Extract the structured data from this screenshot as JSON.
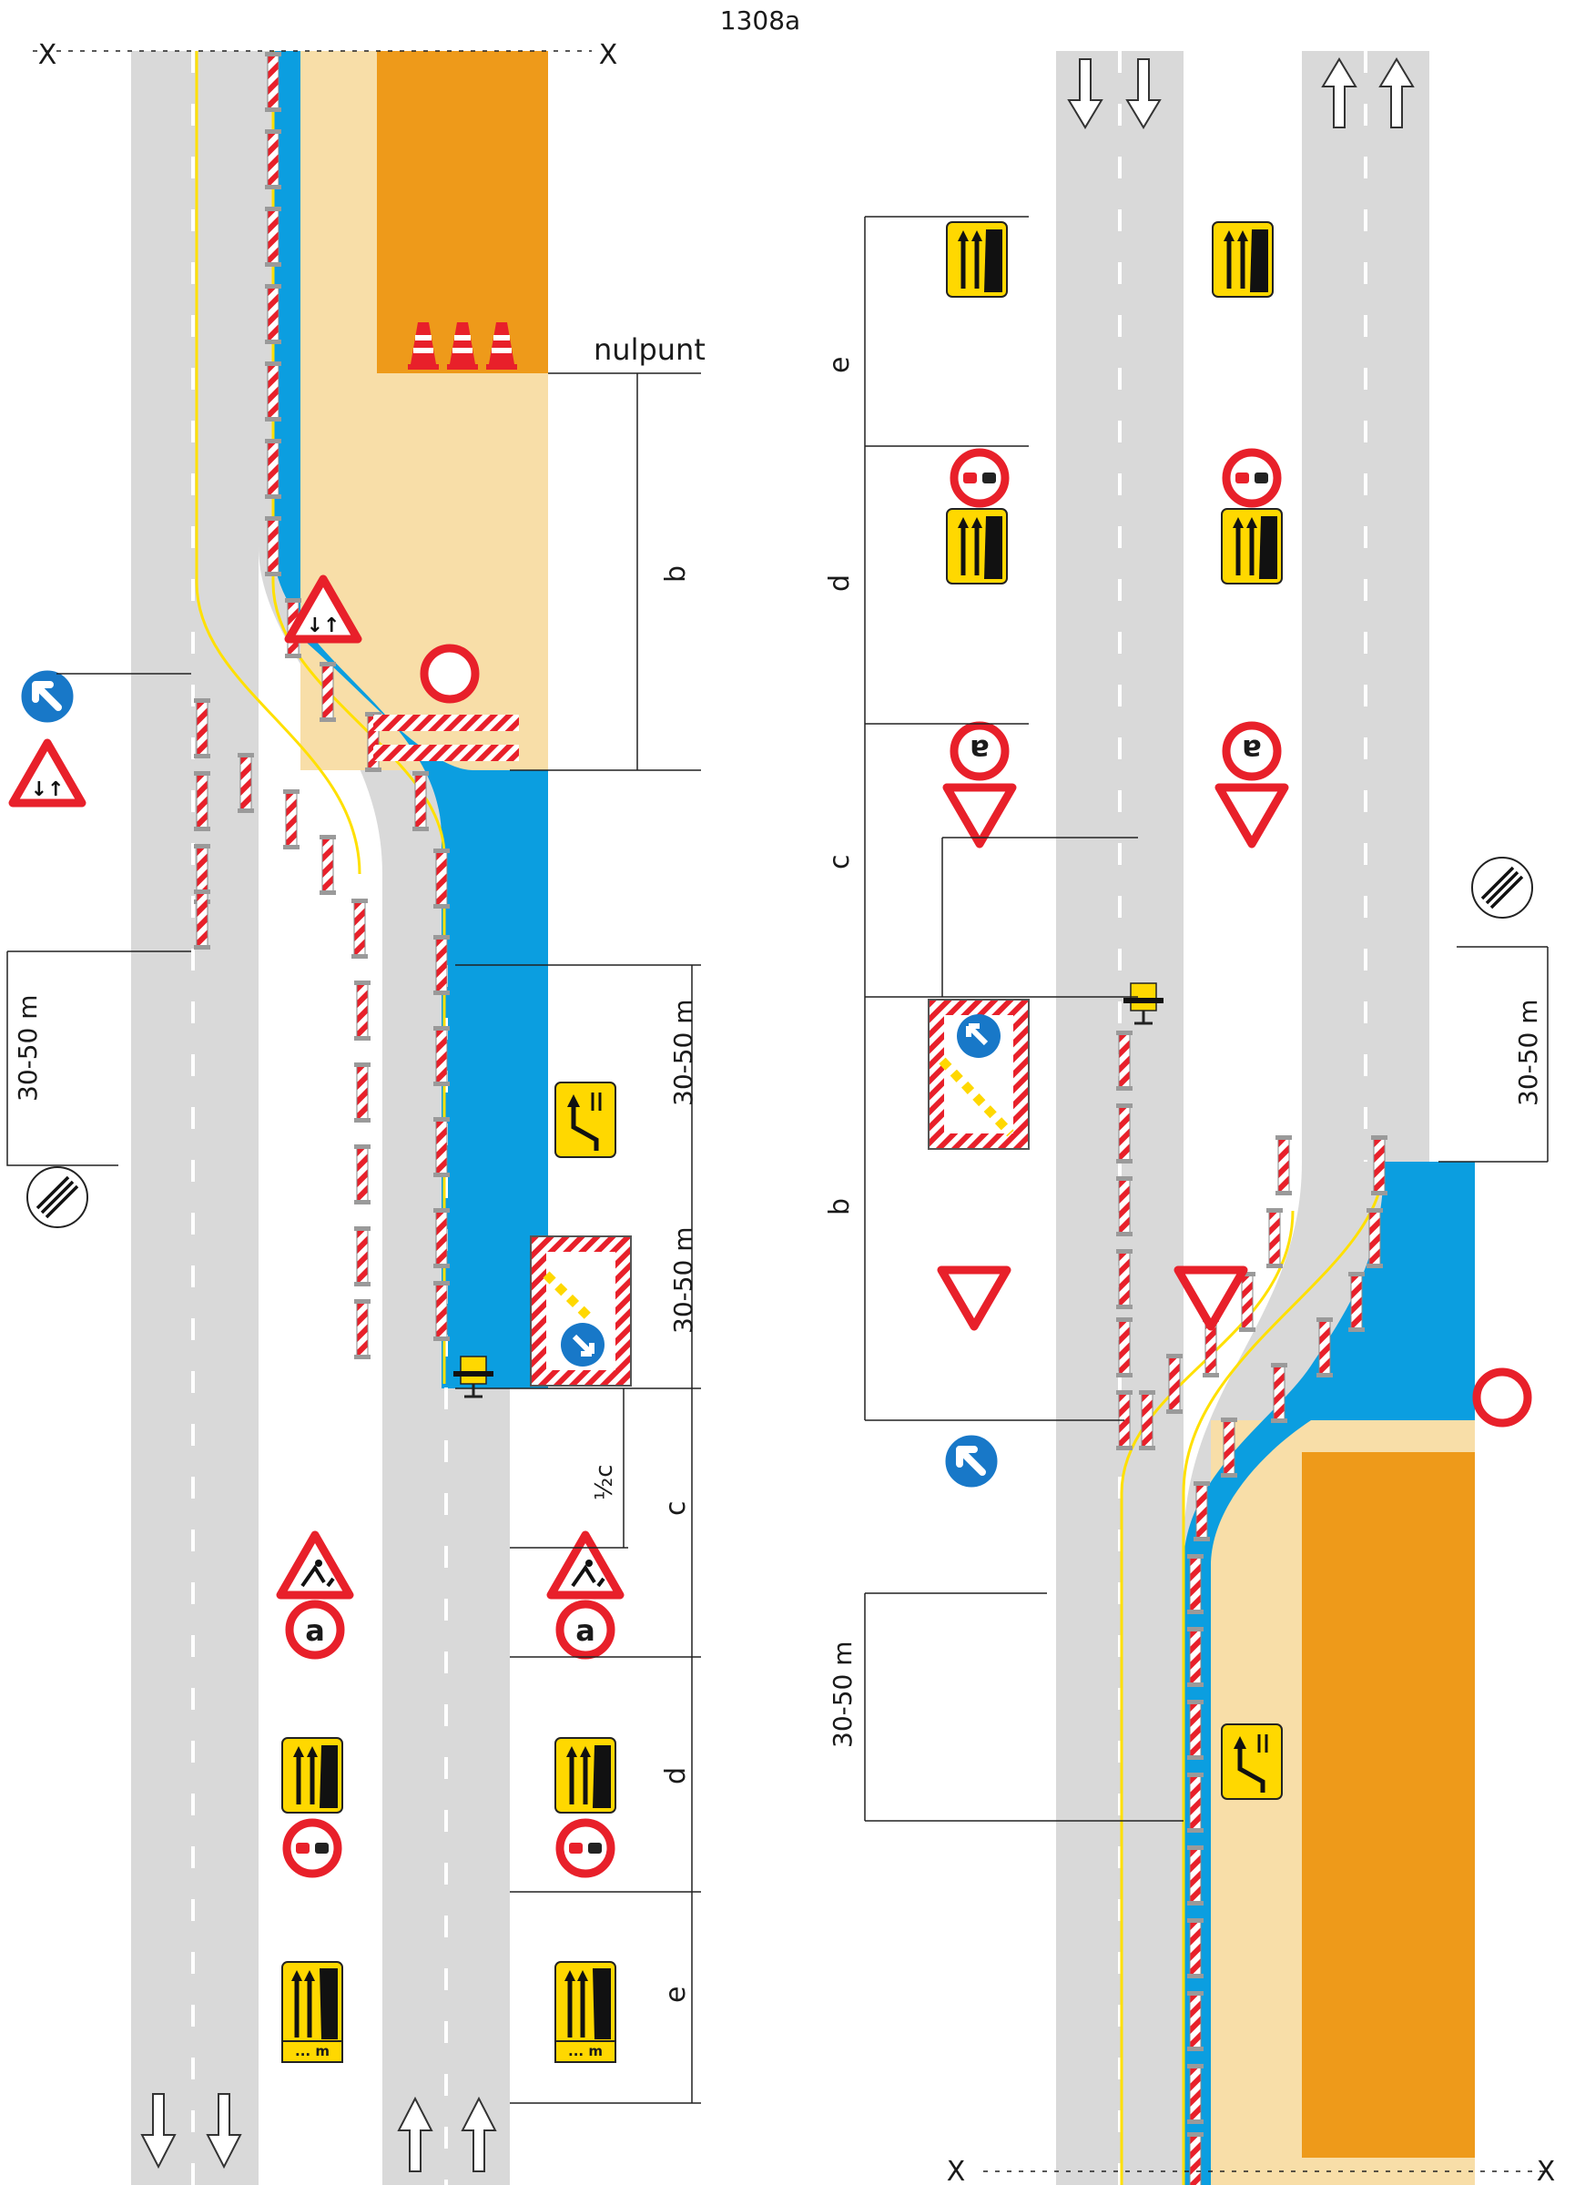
{
  "header": {
    "code": "1308a",
    "section_mark": "X"
  },
  "labels": {
    "nulpunt": "nulpunt",
    "b": "b",
    "c": "c",
    "d": "d",
    "e": "e",
    "half_c": "½c",
    "range": "30-50 m"
  },
  "signs": {
    "sign_text_a": "a",
    "distance_plate": "... m"
  },
  "colors": {
    "road": "#d9d9d9",
    "work_area": "#f8dea8",
    "work_zone": "#ee9a1a",
    "blue_zone": "#0b9ee0",
    "sign_red": "#e8202a",
    "sign_yellow": "#ffd800",
    "sign_blue": "#1878c8",
    "line_yellow": "#ffe000"
  },
  "icons": [
    "barrier-post-icon",
    "traffic-cone-icon",
    "warning-triangle-icon",
    "no-entry-sign-icon",
    "keep-right-sign-icon",
    "lane-change-sign-icon",
    "arrow-board-icon",
    "lane-arrow-icon",
    "end-restriction-sign-icon",
    "no-overtaking-sign-icon",
    "road-works-sign-icon",
    "yield-sign-icon",
    "warning-light-icon"
  ]
}
